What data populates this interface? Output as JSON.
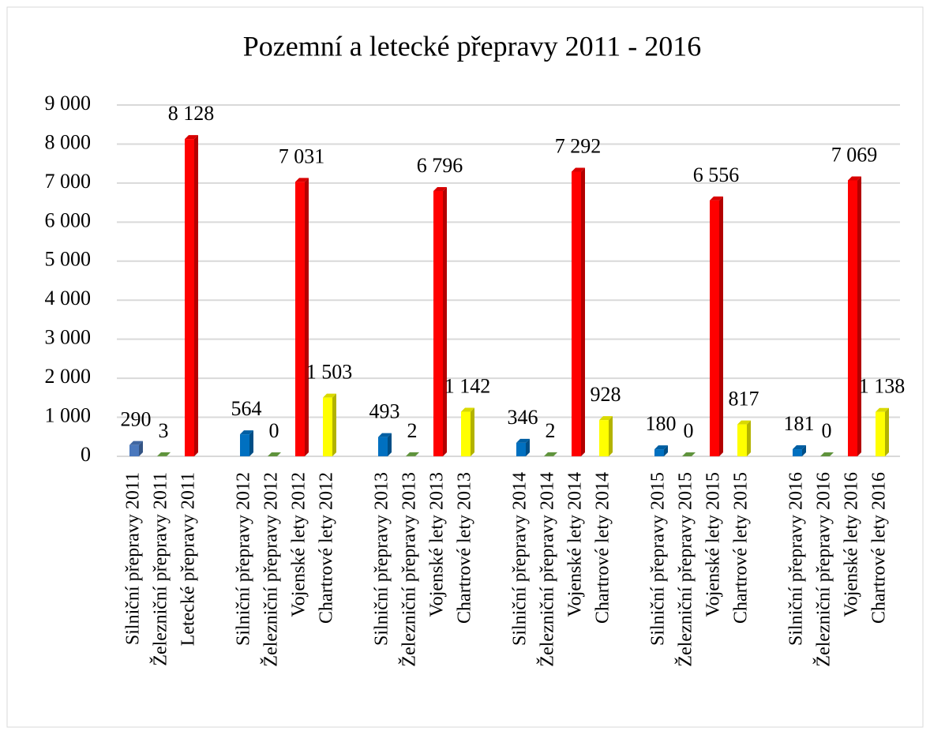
{
  "chart_data": {
    "type": "bar",
    "title": "Pozemní a letecké přepravy 2011 - 2016",
    "categories": [
      "Silniční přepravy 2011",
      "Železniční přepravy 2011",
      "Letecké přepravy 2011",
      null,
      "Silniční přepravy 2012",
      "Železniční přepravy 2012",
      "Vojenské lety 2012",
      "Chartrové lety 2012",
      null,
      "Silniční přepravy 2013",
      "Železniční přepravy 2013",
      "Vojenské lety 2013",
      "Chartrové lety 2013",
      null,
      "Silniční přepravy 2014",
      "Železniční přepravy 2014",
      "Vojenské lety 2014",
      "Chartrové lety 2014",
      null,
      "Silniční přepravy 2015",
      "Železniční přepravy 2015",
      "Vojenské lety 2015",
      "Chartrové lety 2015",
      null,
      "Silniční přepravy 2016",
      "Železniční přepravy 2016",
      "Vojenské lety 2016",
      "Chartrové lety 2016"
    ],
    "values": [
      290,
      3,
      8128,
      null,
      564,
      0,
      7031,
      1503,
      null,
      493,
      2,
      6796,
      1142,
      null,
      346,
      2,
      7292,
      928,
      null,
      180,
      0,
      6556,
      817,
      null,
      181,
      0,
      7069,
      1138
    ],
    "value_labels": [
      "290",
      "3",
      "8 128",
      null,
      "564",
      "0",
      "7 031",
      "1 503",
      null,
      "493",
      "2",
      "6 796",
      "1 142",
      null,
      "346",
      "2",
      "7 292",
      "928",
      null,
      "180",
      "0",
      "6 556",
      "817",
      null,
      "181",
      "0",
      "7 069",
      "1 138"
    ],
    "colors": [
      "#4a78bd",
      "#70ad47",
      "#ff0000",
      null,
      "#0070c0",
      "#70ad47",
      "#ff0000",
      "#ffff00",
      null,
      "#0070c0",
      "#70ad47",
      "#ff0000",
      "#ffff00",
      null,
      "#0070c0",
      "#70ad47",
      "#ff0000",
      "#ffff00",
      null,
      "#0070c0",
      "#70ad47",
      "#ff0000",
      "#ffff00",
      null,
      "#0070c0",
      "#70ad47",
      "#ff0000",
      "#ffff00"
    ],
    "ylim": [
      0,
      9000
    ],
    "yticks": [
      0,
      {
        "value": 1000,
        "label": "1 000"
      },
      {
        "value": 2000,
        "label": "2 000"
      },
      {
        "value": 3000,
        "label": "3 000"
      },
      {
        "value": 4000,
        "label": "4 000"
      },
      {
        "value": 5000,
        "label": "5 000"
      },
      {
        "value": 6000,
        "label": "6 000"
      },
      {
        "value": 7000,
        "label": "7 000"
      },
      {
        "value": 8000,
        "label": "8 000"
      },
      {
        "value": 9000,
        "label": "9 000"
      }
    ],
    "grid": true
  }
}
